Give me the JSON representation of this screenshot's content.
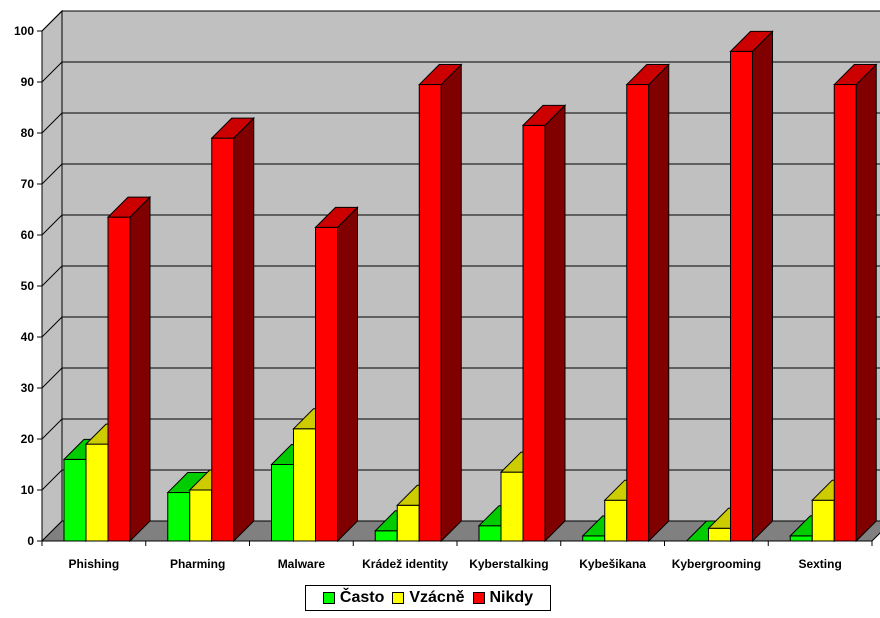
{
  "chart_data": {
    "type": "bar",
    "categories": [
      "Phishing",
      "Pharming",
      "Malware",
      "Krádež identity",
      "Kyberstalking",
      "Kybešikana",
      "Kybergrooming",
      "Sexting"
    ],
    "series": [
      {
        "name": "Často",
        "values": [
          16,
          9.5,
          15,
          2,
          3,
          1,
          0,
          1
        ],
        "color": "#00ff00"
      },
      {
        "name": "Vzácně",
        "values": [
          19,
          10,
          22,
          7,
          13.5,
          8,
          2.5,
          8
        ],
        "color": "#ffff00"
      },
      {
        "name": "Nikdy",
        "values": [
          63.5,
          79,
          61.5,
          89.5,
          81.5,
          89.5,
          96,
          89.5
        ],
        "color": "#ff0000"
      }
    ],
    "ylim": [
      0,
      100
    ],
    "yticks": [
      0,
      10,
      20,
      30,
      40,
      50,
      60,
      70,
      80,
      90,
      100
    ],
    "grid": true,
    "legend_position": "bottom",
    "style": "3d-clustered-column",
    "wall_color": "#c0c0c0",
    "floor_color": "#808080"
  }
}
